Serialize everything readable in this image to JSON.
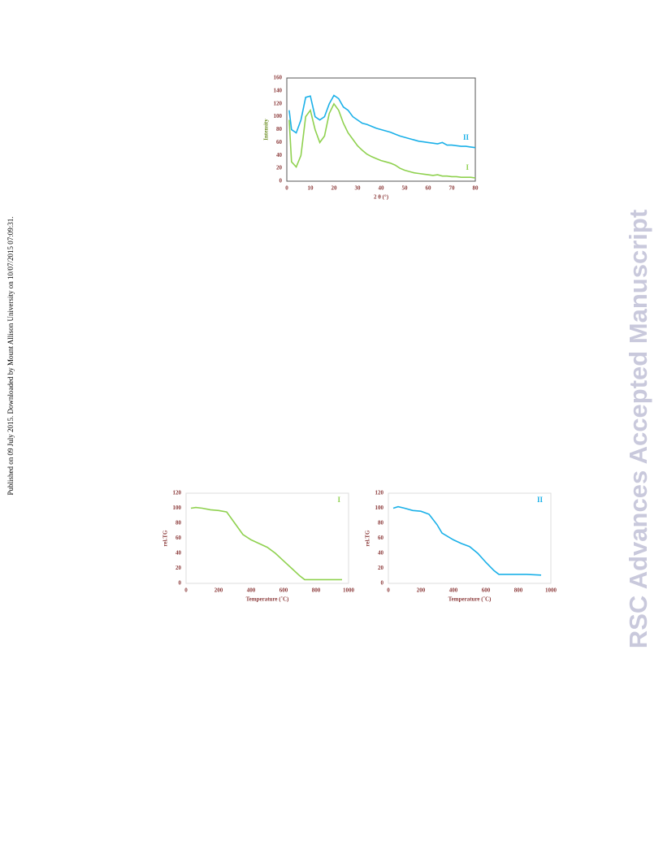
{
  "sidebar": {
    "published": "Published on 09 July 2015. Downloaded by Mount Allison University on 10/07/2015 07:09:31.",
    "journal": "RSC Advances Accepted Manuscript"
  },
  "chart_data": [
    {
      "type": "line",
      "xlabel": "2 θ (°)",
      "ylabel": "Intensity",
      "x": [
        1,
        2,
        4,
        6,
        8,
        10,
        12,
        14,
        16,
        18,
        20,
        22,
        24,
        26,
        28,
        30,
        32,
        34,
        36,
        38,
        40,
        42,
        44,
        46,
        48,
        50,
        52,
        54,
        56,
        58,
        60,
        62,
        64,
        66,
        68,
        70,
        72,
        74,
        76,
        78,
        80
      ],
      "series": [
        {
          "name": "II",
          "color": "#1ab0e8",
          "values": [
            110,
            80,
            75,
            95,
            130,
            132,
            100,
            95,
            100,
            120,
            133,
            128,
            115,
            110,
            100,
            95,
            90,
            88,
            85,
            82,
            80,
            78,
            76,
            73,
            70,
            68,
            66,
            64,
            62,
            61,
            60,
            59,
            58,
            60,
            56,
            56,
            55,
            54,
            54,
            53,
            52
          ]
        },
        {
          "name": "I",
          "color": "#8fd14f",
          "values": [
            95,
            30,
            22,
            40,
            100,
            110,
            80,
            60,
            70,
            105,
            120,
            110,
            90,
            75,
            65,
            55,
            48,
            42,
            38,
            35,
            32,
            30,
            28,
            25,
            20,
            17,
            15,
            13,
            12,
            11,
            10,
            9,
            10,
            8,
            8,
            7,
            7,
            6,
            6,
            6,
            5
          ]
        }
      ],
      "xlim": [
        0,
        80
      ],
      "xticks": [
        0,
        10,
        20,
        30,
        40,
        50,
        60,
        70,
        80
      ],
      "ylim": [
        0,
        160
      ],
      "yticks": [
        0,
        20,
        40,
        60,
        80,
        100,
        120,
        140,
        160
      ],
      "grid": false
    },
    {
      "type": "line",
      "xlabel": "Temperature  (˚C)",
      "ylabel": "rel.TG",
      "x": [
        30,
        60,
        100,
        150,
        200,
        250,
        300,
        350,
        400,
        450,
        500,
        550,
        600,
        650,
        700,
        730,
        800,
        900,
        960
      ],
      "series": [
        {
          "name": "I",
          "color": "#8fd14f",
          "values": [
            100,
            101,
            100,
            98,
            97,
            95,
            80,
            65,
            58,
            53,
            48,
            40,
            30,
            20,
            10,
            5,
            5,
            5,
            5
          ]
        }
      ],
      "xlim": [
        0,
        1000
      ],
      "xticks": [
        0,
        200,
        400,
        600,
        800,
        1000
      ],
      "ylim": [
        0,
        120
      ],
      "yticks": [
        0,
        20,
        40,
        60,
        80,
        100,
        120
      ],
      "grid": false
    },
    {
      "type": "line",
      "xlabel": "Temperature  (˚C)",
      "ylabel": "rel.TG",
      "x": [
        30,
        60,
        100,
        150,
        200,
        250,
        300,
        330,
        400,
        450,
        500,
        550,
        600,
        650,
        680,
        750,
        800,
        850,
        940
      ],
      "series": [
        {
          "name": "II",
          "color": "#1ab0e8",
          "values": [
            100,
            102,
            100,
            97,
            96,
            92,
            78,
            67,
            58,
            53,
            49,
            40,
            28,
            17,
            12,
            12,
            12,
            12,
            11
          ]
        }
      ],
      "xlim": [
        0,
        1000
      ],
      "xticks": [
        0,
        200,
        400,
        600,
        800,
        1000
      ],
      "ylim": [
        0,
        120
      ],
      "yticks": [
        0,
        20,
        40,
        60,
        80,
        100,
        120
      ],
      "grid": false
    }
  ]
}
